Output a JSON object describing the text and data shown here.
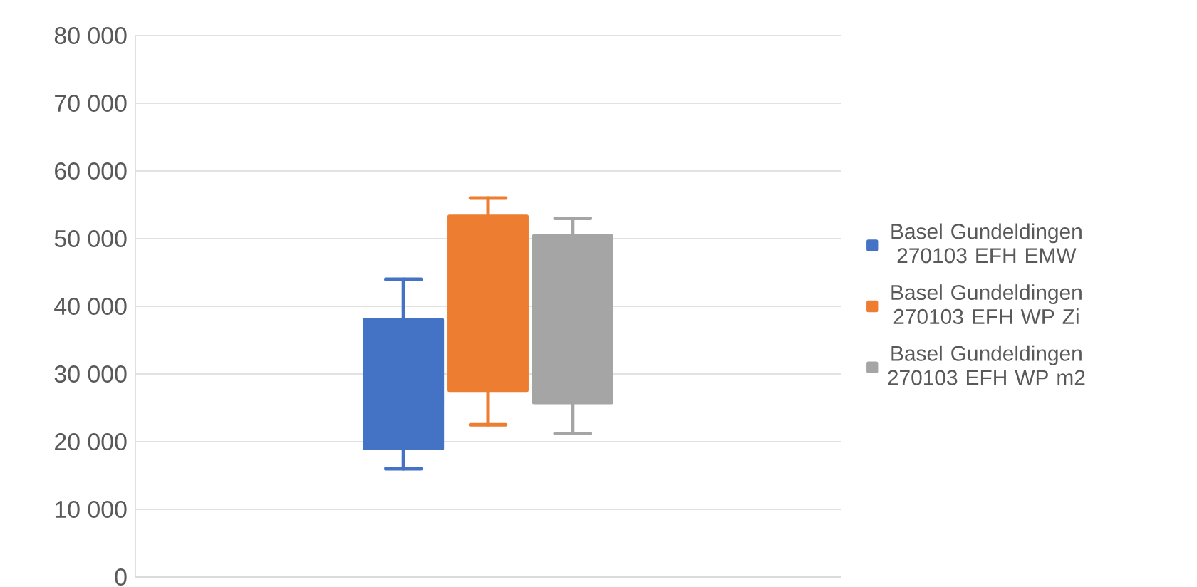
{
  "chart_data": {
    "type": "box",
    "categories": [
      null
    ],
    "series": [
      {
        "name": "Basel Gundeldingen 270103 EFH EMW",
        "color": "#4472c4",
        "boxes": [
          {
            "low": 16000,
            "q1": 19000,
            "median": 25800,
            "q3": 38000,
            "high": 44000
          }
        ]
      },
      {
        "name": "Basel Gundeldingen 270103 EFH WP Zi",
        "color": "#ed7d31",
        "boxes": [
          {
            "low": 22500,
            "q1": 27600,
            "median": 39600,
            "q3": 53300,
            "high": 56000
          }
        ]
      },
      {
        "name": "Basel Gundeldingen 270103 EFH WP m2",
        "color": "#a5a5a5",
        "boxes": [
          {
            "low": 21200,
            "q1": 25800,
            "median": 37500,
            "q3": 50400,
            "high": 53000
          }
        ]
      }
    ],
    "ylim": [
      0,
      80000
    ],
    "yticks": [
      {
        "value": 0,
        "label": "0"
      },
      {
        "value": 10000,
        "label": "10 000"
      },
      {
        "value": 20000,
        "label": "20 000"
      },
      {
        "value": 30000,
        "label": "30 000"
      },
      {
        "value": 40000,
        "label": "40 000"
      },
      {
        "value": 50000,
        "label": "50 000"
      },
      {
        "value": 60000,
        "label": "60 000"
      },
      {
        "value": 70000,
        "label": "70 000"
      },
      {
        "value": 80000,
        "label": "80 000"
      }
    ],
    "grid": "y",
    "legend": "right"
  }
}
